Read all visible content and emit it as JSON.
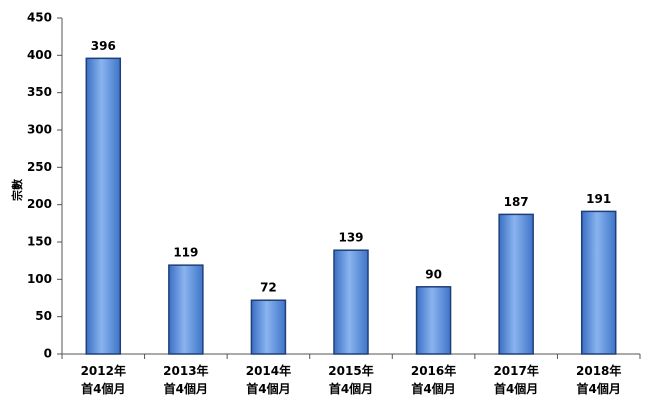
{
  "chart_data": {
    "type": "bar",
    "y_label": "宗數",
    "categories": [
      "2012年\n首4個月",
      "2013年\n首4個月",
      "2014年\n首4個月",
      "2015年\n首4個月",
      "2016年\n首4個月",
      "2017年\n首4個月",
      "2018年\n首4個月"
    ],
    "values": [
      396,
      119,
      72,
      139,
      90,
      187,
      191
    ],
    "color": "#4f86d9",
    "ylim": [
      0,
      450
    ],
    "yticks": [
      0,
      50,
      100,
      150,
      200,
      250,
      300,
      350,
      400,
      450
    ],
    "grid": false
  }
}
